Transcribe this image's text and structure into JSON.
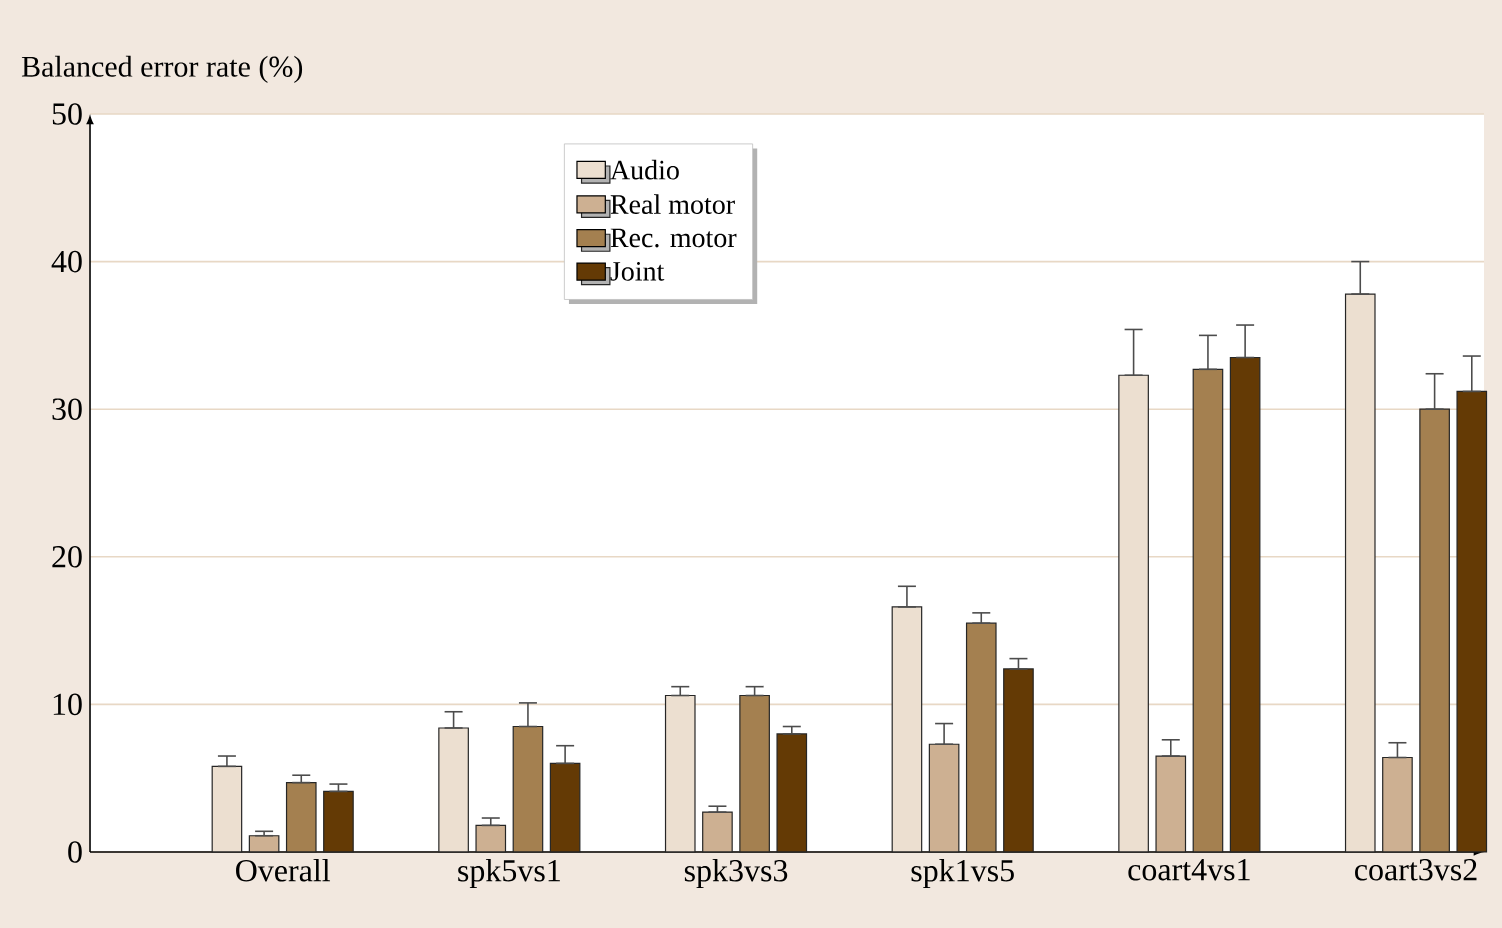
{
  "chart_data": {
    "type": "bar",
    "ylabel": "Balanced error rate (%)",
    "categories": [
      "Overall",
      "spk5vs1",
      "spk3vs3",
      "spk1vs5",
      "coart4vs1",
      "coart3vs2"
    ],
    "series": [
      {
        "name": "Audio",
        "color": "#ecdfd0",
        "values": [
          5.8,
          8.4,
          10.6,
          16.6,
          32.3,
          37.8
        ],
        "errors": [
          [
            5.8,
            6.5
          ],
          [
            8.4,
            9.5
          ],
          [
            10.6,
            11.2
          ],
          [
            16.6,
            18.0
          ],
          [
            32.3,
            35.4
          ],
          [
            37.8,
            40.0
          ]
        ]
      },
      {
        "name": "Real motor",
        "color": "#cdb092",
        "values": [
          1.1,
          1.8,
          2.7,
          7.3,
          6.5,
          6.4
        ],
        "errors": [
          [
            1.1,
            1.4
          ],
          [
            1.8,
            2.3
          ],
          [
            2.7,
            3.1
          ],
          [
            7.3,
            8.7
          ],
          [
            6.5,
            7.6
          ],
          [
            6.4,
            7.4
          ]
        ]
      },
      {
        "name": "Rec. motor",
        "color": "#a48050",
        "values": [
          4.7,
          8.5,
          10.6,
          15.5,
          32.7,
          30.0
        ],
        "errors": [
          [
            4.7,
            5.2
          ],
          [
            8.5,
            10.1
          ],
          [
            10.6,
            11.2
          ],
          [
            15.5,
            16.2
          ],
          [
            32.7,
            35.0
          ],
          [
            30.0,
            32.4
          ]
        ]
      },
      {
        "name": "Joint",
        "color": "#643a05",
        "values": [
          4.1,
          6.0,
          8.0,
          12.4,
          33.5,
          31.2
        ],
        "errors": [
          [
            4.1,
            4.6
          ],
          [
            6.0,
            7.2
          ],
          [
            8.0,
            8.5
          ],
          [
            12.4,
            13.1
          ],
          [
            33.5,
            35.7
          ],
          [
            31.2,
            33.6
          ]
        ]
      }
    ],
    "ylim": [
      0,
      50
    ],
    "yticks": [
      0,
      10,
      20,
      30,
      40,
      50
    ],
    "grid": "y",
    "legend": "top"
  }
}
